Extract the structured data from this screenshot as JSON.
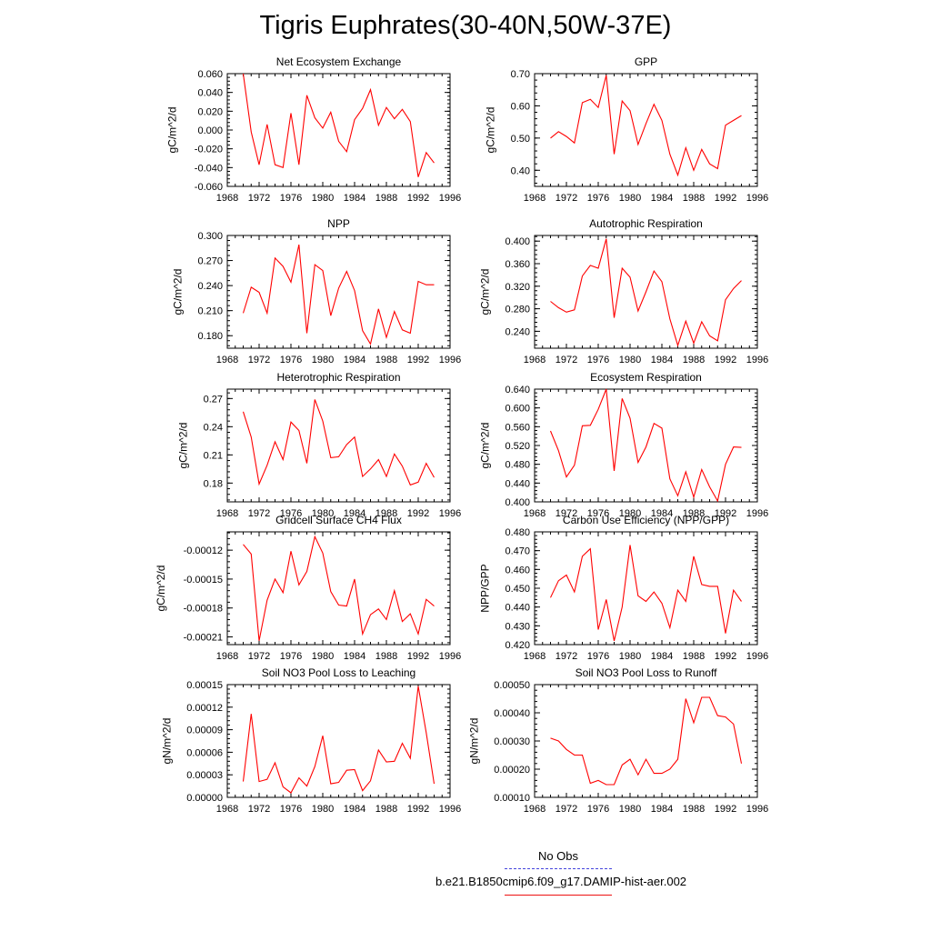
{
  "title": "Tigris Euphrates(30-40N,50W-37E)",
  "legend": {
    "items": [
      {
        "label": "No Obs",
        "color": "#4444dd",
        "style": "dashed"
      },
      {
        "label": "b.e21.B1850cmip6.f09_g17.DAMIP-hist-aer.002",
        "color": "#ee1111",
        "style": "solid"
      }
    ]
  },
  "colors": {
    "series": "#ff0000"
  },
  "chart_data": [
    {
      "type": "line",
      "title": "Net Ecosystem Exchange",
      "ylabel": "gC/m^2/d",
      "xlim": [
        1968,
        1996
      ],
      "xticks": [
        1968,
        1972,
        1976,
        1980,
        1984,
        1988,
        1992,
        1996
      ],
      "ylim": [
        -0.06,
        0.06
      ],
      "yticks": [
        "-0.060",
        "-0.040",
        "-0.020",
        "0.000",
        "0.020",
        "0.040",
        "0.060"
      ],
      "x": [
        1970,
        1971,
        1972,
        1973,
        1974,
        1975,
        1976,
        1977,
        1978,
        1979,
        1980,
        1981,
        1982,
        1983,
        1984,
        1985,
        1986,
        1987,
        1988,
        1989,
        1990,
        1991,
        1992,
        1993,
        1994
      ],
      "y": [
        0.06,
        -0.002,
        -0.037,
        0.006,
        -0.037,
        -0.04,
        0.018,
        -0.037,
        0.037,
        0.013,
        0.002,
        0.019,
        -0.012,
        -0.023,
        0.011,
        0.023,
        0.043,
        0.005,
        0.024,
        0.012,
        0.022,
        0.009,
        -0.05,
        -0.024,
        -0.035
      ]
    },
    {
      "type": "line",
      "title": "GPP",
      "ylabel": "gC/m^2/d",
      "xlim": [
        1968,
        1996
      ],
      "xticks": [
        1968,
        1972,
        1976,
        1980,
        1984,
        1988,
        1992,
        1996
      ],
      "ylim": [
        0.35,
        0.7
      ],
      "yticks": [
        "0.40",
        "0.50",
        "0.60",
        "0.70"
      ],
      "x": [
        1970,
        1971,
        1972,
        1973,
        1974,
        1975,
        1976,
        1977,
        1978,
        1979,
        1980,
        1981,
        1982,
        1983,
        1984,
        1985,
        1986,
        1987,
        1988,
        1989,
        1990,
        1991,
        1992,
        1993,
        1994
      ],
      "y": [
        0.5,
        0.52,
        0.505,
        0.485,
        0.61,
        0.62,
        0.595,
        0.695,
        0.45,
        0.615,
        0.585,
        0.48,
        0.545,
        0.605,
        0.555,
        0.45,
        0.385,
        0.47,
        0.4,
        0.465,
        0.42,
        0.405,
        0.54,
        0.555,
        0.57
      ]
    },
    {
      "type": "line",
      "title": "NPP",
      "ylabel": "gC/m^2/d",
      "xlim": [
        1968,
        1996
      ],
      "xticks": [
        1968,
        1972,
        1976,
        1980,
        1984,
        1988,
        1992,
        1996
      ],
      "ylim": [
        0.165,
        0.3
      ],
      "yticks": [
        "0.180",
        "0.210",
        "0.240",
        "0.270",
        "0.300"
      ],
      "x": [
        1970,
        1971,
        1972,
        1973,
        1974,
        1975,
        1976,
        1977,
        1978,
        1979,
        1980,
        1981,
        1982,
        1983,
        1984,
        1985,
        1986,
        1987,
        1988,
        1989,
        1990,
        1991,
        1992,
        1993,
        1994
      ],
      "y": [
        0.207,
        0.238,
        0.232,
        0.207,
        0.273,
        0.263,
        0.244,
        0.289,
        0.183,
        0.265,
        0.258,
        0.204,
        0.237,
        0.257,
        0.234,
        0.186,
        0.17,
        0.212,
        0.178,
        0.209,
        0.187,
        0.183,
        0.245,
        0.241,
        0.241
      ]
    },
    {
      "type": "line",
      "title": "Autotrophic Respiration",
      "ylabel": "gC/m^2/d",
      "xlim": [
        1968,
        1996
      ],
      "xticks": [
        1968,
        1972,
        1976,
        1980,
        1984,
        1988,
        1992,
        1996
      ],
      "ylim": [
        0.21,
        0.41
      ],
      "yticks": [
        "0.240",
        "0.280",
        "0.320",
        "0.360",
        "0.400"
      ],
      "x": [
        1970,
        1971,
        1972,
        1973,
        1974,
        1975,
        1976,
        1977,
        1978,
        1979,
        1980,
        1981,
        1982,
        1983,
        1984,
        1985,
        1986,
        1987,
        1988,
        1989,
        1990,
        1991,
        1992,
        1993,
        1994
      ],
      "y": [
        0.293,
        0.282,
        0.274,
        0.278,
        0.338,
        0.357,
        0.352,
        0.404,
        0.264,
        0.352,
        0.336,
        0.276,
        0.31,
        0.347,
        0.328,
        0.262,
        0.215,
        0.258,
        0.219,
        0.257,
        0.232,
        0.223,
        0.296,
        0.316,
        0.33
      ]
    },
    {
      "type": "line",
      "title": "Heterotrophic Respiration",
      "ylabel": "gC/m^2/d",
      "xlim": [
        1968,
        1996
      ],
      "xticks": [
        1968,
        1972,
        1976,
        1980,
        1984,
        1988,
        1992,
        1996
      ],
      "ylim": [
        0.16,
        0.28
      ],
      "yticks": [
        "0.18",
        "0.21",
        "0.24",
        "0.27"
      ],
      "x": [
        1970,
        1971,
        1972,
        1973,
        1974,
        1975,
        1976,
        1977,
        1978,
        1979,
        1980,
        1981,
        1982,
        1983,
        1984,
        1985,
        1986,
        1987,
        1988,
        1989,
        1990,
        1991,
        1992,
        1993,
        1994
      ],
      "y": [
        0.256,
        0.229,
        0.179,
        0.199,
        0.224,
        0.205,
        0.245,
        0.236,
        0.201,
        0.269,
        0.246,
        0.207,
        0.208,
        0.221,
        0.229,
        0.187,
        0.195,
        0.205,
        0.187,
        0.211,
        0.198,
        0.178,
        0.181,
        0.201,
        0.186
      ]
    },
    {
      "type": "line",
      "title": "Ecosystem Respiration",
      "ylabel": "gC/m^2/d",
      "xlim": [
        1968,
        1996
      ],
      "xticks": [
        1968,
        1972,
        1976,
        1980,
        1984,
        1988,
        1992,
        1996
      ],
      "ylim": [
        0.4,
        0.64
      ],
      "yticks": [
        "0.400",
        "0.440",
        "0.480",
        "0.520",
        "0.560",
        "0.600",
        "0.640"
      ],
      "x": [
        1970,
        1971,
        1972,
        1973,
        1974,
        1975,
        1976,
        1977,
        1978,
        1979,
        1980,
        1981,
        1982,
        1983,
        1984,
        1985,
        1986,
        1987,
        1988,
        1989,
        1990,
        1991,
        1992,
        1993,
        1994
      ],
      "y": [
        0.551,
        0.509,
        0.453,
        0.478,
        0.562,
        0.563,
        0.597,
        0.64,
        0.466,
        0.62,
        0.578,
        0.484,
        0.517,
        0.567,
        0.557,
        0.449,
        0.413,
        0.464,
        0.41,
        0.469,
        0.432,
        0.402,
        0.48,
        0.517,
        0.516
      ]
    },
    {
      "type": "line",
      "title": "Gridcell Surface CH4 Flux",
      "ylabel": "gC/m^2/d",
      "xlim": [
        1968,
        1996
      ],
      "xticks": [
        1968,
        1972,
        1976,
        1980,
        1984,
        1988,
        1992,
        1996
      ],
      "ylim": [
        -0.000218,
        -0.000101
      ],
      "yticks": [
        "-0.00021",
        "-0.00018",
        "-0.00015",
        "-0.00012"
      ],
      "tickValues": [
        -0.00021,
        -0.00018,
        -0.00015,
        -0.00012
      ],
      "x": [
        1970,
        1971,
        1972,
        1973,
        1974,
        1975,
        1976,
        1977,
        1978,
        1979,
        1980,
        1981,
        1982,
        1983,
        1984,
        1985,
        1986,
        1987,
        1988,
        1989,
        1990,
        1991,
        1992,
        1993,
        1994
      ],
      "y": [
        -0.000114,
        -0.000124,
        -0.000214,
        -0.000172,
        -0.00015,
        -0.000164,
        -0.000121,
        -0.000156,
        -0.000142,
        -0.000106,
        -0.000123,
        -0.000163,
        -0.000177,
        -0.000178,
        -0.00015,
        -0.000207,
        -0.000187,
        -0.000181,
        -0.000192,
        -0.000162,
        -0.000194,
        -0.000186,
        -0.000207,
        -0.000171,
        -0.000178
      ]
    },
    {
      "type": "line",
      "title": "Carbon Use Efficiency (NPP/GPP)",
      "ylabel": "NPP/GPP",
      "xlim": [
        1968,
        1996
      ],
      "xticks": [
        1968,
        1972,
        1976,
        1980,
        1984,
        1988,
        1992,
        1996
      ],
      "ylim": [
        0.42,
        0.48
      ],
      "yticks": [
        "0.420",
        "0.430",
        "0.440",
        "0.450",
        "0.460",
        "0.470",
        "0.480"
      ],
      "x": [
        1970,
        1971,
        1972,
        1973,
        1974,
        1975,
        1976,
        1977,
        1978,
        1979,
        1980,
        1981,
        1982,
        1983,
        1984,
        1985,
        1986,
        1987,
        1988,
        1989,
        1990,
        1991,
        1992,
        1993,
        1994
      ],
      "y": [
        0.445,
        0.454,
        0.457,
        0.448,
        0.467,
        0.471,
        0.428,
        0.444,
        0.422,
        0.44,
        0.473,
        0.446,
        0.443,
        0.448,
        0.442,
        0.429,
        0.449,
        0.443,
        0.467,
        0.452,
        0.451,
        0.451,
        0.426,
        0.449,
        0.443
      ]
    },
    {
      "type": "line",
      "title": "Soil NO3 Pool Loss to Leaching",
      "ylabel": "gN/m^2/d",
      "xlim": [
        1968,
        1996
      ],
      "xticks": [
        1968,
        1972,
        1976,
        1980,
        1984,
        1988,
        1992,
        1996
      ],
      "ylim": [
        0,
        0.00015
      ],
      "yticks": [
        "0.00000",
        "0.00003",
        "0.00006",
        "0.00009",
        "0.00012",
        "0.00015"
      ],
      "x": [
        1970,
        1971,
        1972,
        1973,
        1974,
        1975,
        1976,
        1977,
        1978,
        1979,
        1980,
        1981,
        1982,
        1983,
        1984,
        1985,
        1986,
        1987,
        1988,
        1989,
        1990,
        1991,
        1992,
        1993,
        1994
      ],
      "y": [
        2.1e-05,
        0.000111,
        2.1e-05,
        2.4e-05,
        4.6e-05,
        1.4e-05,
        6e-06,
        2.6e-05,
        1.5e-05,
        4.1e-05,
        8.2e-05,
        1.8e-05,
        2e-05,
        3.6e-05,
        3.7e-05,
        9e-06,
        2.2e-05,
        6.3e-05,
        4.7e-05,
        4.8e-05,
        7.2e-05,
        5.2e-05,
        0.000148,
        8.6e-05,
        1.8e-05
      ]
    },
    {
      "type": "line",
      "title": "Soil NO3 Pool Loss to Runoff",
      "ylabel": "gN/m^2/d",
      "xlim": [
        1968,
        1996
      ],
      "xticks": [
        1968,
        1972,
        1976,
        1980,
        1984,
        1988,
        1992,
        1996
      ],
      "ylim": [
        0.0001,
        0.0005
      ],
      "yticks": [
        "0.00010",
        "0.00020",
        "0.00030",
        "0.00040",
        "0.00050"
      ],
      "x": [
        1970,
        1971,
        1972,
        1973,
        1974,
        1975,
        1976,
        1977,
        1978,
        1979,
        1980,
        1981,
        1982,
        1983,
        1984,
        1985,
        1986,
        1987,
        1988,
        1989,
        1990,
        1991,
        1992,
        1993,
        1994
      ],
      "y": [
        0.00031,
        0.0003,
        0.00027,
        0.00025,
        0.00025,
        0.00015,
        0.00016,
        0.000145,
        0.000145,
        0.000215,
        0.000235,
        0.00018,
        0.000235,
        0.000185,
        0.000185,
        0.0002,
        0.000235,
        0.00045,
        0.000365,
        0.000455,
        0.000455,
        0.00039,
        0.000385,
        0.00036,
        0.00022
      ]
    }
  ]
}
